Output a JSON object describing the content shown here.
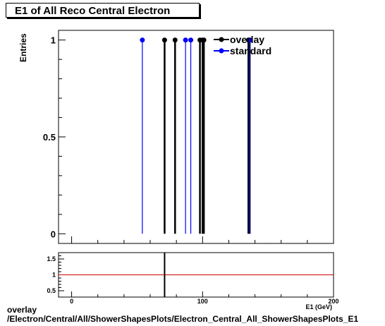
{
  "title": "E1 of All Reco Central Electron",
  "footer": {
    "line1": "overlay",
    "line2": "/Electron/Central/All/ShowerShapesPlots/Electron_Central_All_ShowerShapesPlots_E1"
  },
  "colors": {
    "overlay": "#000000",
    "standard": "#0000ff",
    "ratio_line": "#cc0000",
    "frame": "#000000"
  },
  "chart_data": [
    {
      "type": "scatter",
      "title": "E1 of All Reco Central Electron",
      "xlabel": "E1 (GeV)",
      "ylabel": "Entries",
      "xlim": [
        -10,
        200
      ],
      "ylim": [
        -0.05,
        1.05
      ],
      "yticks": [
        0,
        0.5,
        1
      ],
      "ytick_labels": [
        "0",
        "0.5",
        "1"
      ],
      "legend": "top-right",
      "series": [
        {
          "name": "overlay",
          "x": [
            71,
            79,
            98,
            100,
            101,
            135,
            136
          ],
          "y": [
            1,
            1,
            1,
            1,
            1,
            1,
            1
          ]
        },
        {
          "name": "standard",
          "x": [
            54,
            87,
            91,
            136
          ],
          "y": [
            1,
            1,
            1,
            1
          ]
        }
      ]
    },
    {
      "type": "line",
      "xlim": [
        -10,
        200
      ],
      "ylim": [
        0.3,
        1.7
      ],
      "yticks": [
        0.5,
        1,
        1.5
      ],
      "ytick_labels": [
        "0.5",
        "1",
        "1.5"
      ],
      "xticks": [
        0,
        100,
        200
      ],
      "xtick_labels": [
        "0",
        "100",
        "200"
      ],
      "reference_y": 1,
      "vertical_marks_x": [
        71
      ]
    }
  ]
}
